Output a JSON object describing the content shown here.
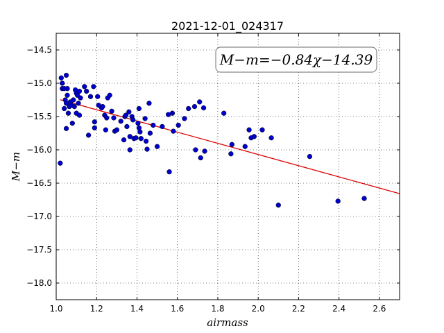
{
  "chart_data": {
    "type": "scatter",
    "title": "2021-12-01_024317",
    "xlabel": "airmass",
    "ylabel": "M−m",
    "xlim": [
      1.0,
      2.7
    ],
    "ylim": [
      -18.25,
      -14.25
    ],
    "y_inverted": true,
    "x_ticks": [
      1.0,
      1.2,
      1.4,
      1.6,
      1.8,
      2.0,
      2.2,
      2.4,
      2.6
    ],
    "x_tick_labels": [
      "1.0",
      "1.2",
      "1.4",
      "1.6",
      "1.8",
      "2.0",
      "2.2",
      "2.4",
      "2.6"
    ],
    "y_ticks": [
      -14.5,
      -15.0,
      -15.5,
      -16.0,
      -16.5,
      -17.0,
      -17.5,
      -18.0
    ],
    "y_tick_labels": [
      "−14.5",
      "−15.0",
      "−15.5",
      "−16.0",
      "−16.5",
      "−17.0",
      "−17.5",
      "−18.0"
    ],
    "grid": true,
    "annotation": "M−m=−0.84χ−14.39",
    "annotation_position": "top-right",
    "marker_color": "#0000cc",
    "fit_color": "#dd0000",
    "fit": {
      "slope": -0.84,
      "intercept": -14.39,
      "x_range": [
        1.02,
        2.7
      ]
    },
    "points": [
      [
        1.02,
        -16.2
      ],
      [
        1.025,
        -14.92
      ],
      [
        1.03,
        -15.0
      ],
      [
        1.03,
        -15.08
      ],
      [
        1.04,
        -15.08
      ],
      [
        1.04,
        -15.38
      ],
      [
        1.045,
        -15.25
      ],
      [
        1.05,
        -14.88
      ],
      [
        1.05,
        -15.3
      ],
      [
        1.05,
        -15.68
      ],
      [
        1.055,
        -15.08
      ],
      [
        1.055,
        -15.18
      ],
      [
        1.06,
        -15.45
      ],
      [
        1.065,
        -15.35
      ],
      [
        1.07,
        -15.28
      ],
      [
        1.075,
        -15.33
      ],
      [
        1.08,
        -15.6
      ],
      [
        1.085,
        -15.25
      ],
      [
        1.09,
        -15.35
      ],
      [
        1.095,
        -15.1
      ],
      [
        1.1,
        -15.45
      ],
      [
        1.1,
        -15.15
      ],
      [
        1.105,
        -15.18
      ],
      [
        1.11,
        -15.3
      ],
      [
        1.115,
        -15.12
      ],
      [
        1.115,
        -15.48
      ],
      [
        1.12,
        -15.22
      ],
      [
        1.14,
        -15.05
      ],
      [
        1.15,
        -15.12
      ],
      [
        1.16,
        -15.78
      ],
      [
        1.17,
        -15.2
      ],
      [
        1.185,
        -15.05
      ],
      [
        1.19,
        -15.58
      ],
      [
        1.19,
        -15.67
      ],
      [
        1.205,
        -15.2
      ],
      [
        1.21,
        -15.33
      ],
      [
        1.225,
        -15.37
      ],
      [
        1.23,
        -15.35
      ],
      [
        1.24,
        -15.48
      ],
      [
        1.245,
        -15.7
      ],
      [
        1.25,
        -15.52
      ],
      [
        1.255,
        -15.22
      ],
      [
        1.265,
        -15.18
      ],
      [
        1.275,
        -15.42
      ],
      [
        1.285,
        -15.52
      ],
      [
        1.29,
        -15.72
      ],
      [
        1.3,
        -15.7
      ],
      [
        1.32,
        -15.57
      ],
      [
        1.335,
        -15.85
      ],
      [
        1.34,
        -15.5
      ],
      [
        1.345,
        -15.48
      ],
      [
        1.35,
        -15.65
      ],
      [
        1.36,
        -15.43
      ],
      [
        1.365,
        -16.0
      ],
      [
        1.365,
        -15.8
      ],
      [
        1.375,
        -15.5
      ],
      [
        1.38,
        -15.55
      ],
      [
        1.385,
        -15.83
      ],
      [
        1.395,
        -15.82
      ],
      [
        1.405,
        -15.6
      ],
      [
        1.41,
        -15.38
      ],
      [
        1.41,
        -15.67
      ],
      [
        1.415,
        -15.73
      ],
      [
        1.42,
        -15.83
      ],
      [
        1.44,
        -15.53
      ],
      [
        1.445,
        -15.87
      ],
      [
        1.45,
        -15.99
      ],
      [
        1.46,
        -15.3
      ],
      [
        1.465,
        -15.75
      ],
      [
        1.48,
        -15.63
      ],
      [
        1.5,
        -15.95
      ],
      [
        1.525,
        -15.65
      ],
      [
        1.555,
        -15.47
      ],
      [
        1.56,
        -16.33
      ],
      [
        1.575,
        -15.45
      ],
      [
        1.58,
        -15.72
      ],
      [
        1.605,
        -15.63
      ],
      [
        1.635,
        -15.53
      ],
      [
        1.655,
        -15.38
      ],
      [
        1.685,
        -15.35
      ],
      [
        1.69,
        -16.0
      ],
      [
        1.71,
        -15.28
      ],
      [
        1.715,
        -16.12
      ],
      [
        1.73,
        -15.37
      ],
      [
        1.735,
        -16.02
      ],
      [
        1.83,
        -15.45
      ],
      [
        1.865,
        -16.06
      ],
      [
        1.87,
        -15.92
      ],
      [
        1.935,
        -15.95
      ],
      [
        1.955,
        -15.7
      ],
      [
        1.965,
        -15.82
      ],
      [
        1.98,
        -15.8
      ],
      [
        2.02,
        -15.7
      ],
      [
        2.065,
        -15.82
      ],
      [
        2.1,
        -16.83
      ],
      [
        2.255,
        -16.1
      ],
      [
        2.395,
        -16.77
      ],
      [
        2.525,
        -16.73
      ]
    ]
  }
}
